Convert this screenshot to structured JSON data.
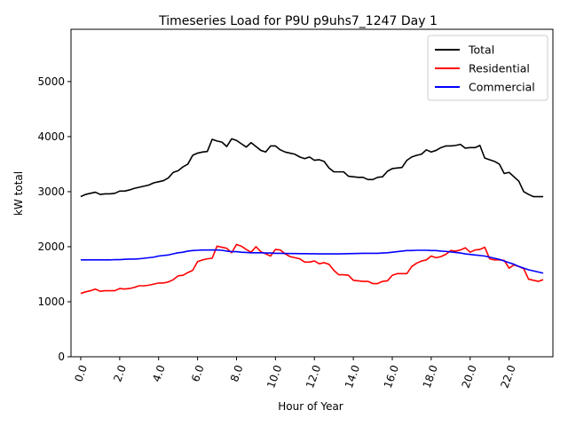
{
  "chart_data": {
    "type": "line",
    "title": "Timeseries Load for P9U p9uhs7_1247  Day 1",
    "xlabel": "Hour of Year",
    "ylabel": "kW total",
    "xlim": [
      -0.5,
      24.25
    ],
    "ylim": [
      0,
      5950
    ],
    "x_ticks": [
      0,
      2,
      4,
      6,
      8,
      10,
      12,
      14,
      16,
      18,
      20,
      22
    ],
    "x_tick_labels": [
      "0.0",
      "2.0",
      "4.0",
      "6.0",
      "8.0",
      "10.0",
      "12.0",
      "14.0",
      "16.0",
      "18.0",
      "20.0",
      "22.0"
    ],
    "y_ticks": [
      0,
      1000,
      2000,
      3000,
      4000,
      5000
    ],
    "y_tick_labels": [
      "0",
      "1000",
      "2000",
      "3000",
      "4000",
      "5000"
    ],
    "legend_position": "top-right",
    "x": [
      0.0,
      0.25,
      0.5,
      0.75,
      1.0,
      1.25,
      1.5,
      1.75,
      2.0,
      2.25,
      2.5,
      2.75,
      3.0,
      3.25,
      3.5,
      3.75,
      4.0,
      4.25,
      4.5,
      4.75,
      5.0,
      5.25,
      5.5,
      5.75,
      6.0,
      6.25,
      6.5,
      6.75,
      7.0,
      7.25,
      7.5,
      7.75,
      8.0,
      8.25,
      8.5,
      8.75,
      9.0,
      9.25,
      9.5,
      9.75,
      10.0,
      10.25,
      10.5,
      10.75,
      11.0,
      11.25,
      11.5,
      11.75,
      12.0,
      12.25,
      12.5,
      12.75,
      13.0,
      13.25,
      13.5,
      13.75,
      14.0,
      14.25,
      14.5,
      14.75,
      15.0,
      15.25,
      15.5,
      15.75,
      16.0,
      16.25,
      16.5,
      16.75,
      17.0,
      17.25,
      17.5,
      17.75,
      18.0,
      18.25,
      18.5,
      18.75,
      19.0,
      19.25,
      19.5,
      19.75,
      20.0,
      20.25,
      20.5,
      20.75,
      21.0,
      21.25,
      21.5,
      21.75,
      22.0,
      22.25,
      22.5,
      22.75,
      23.0,
      23.25,
      23.5,
      23.75
    ],
    "series": [
      {
        "name": "Total",
        "color": "#000000",
        "values": [
          2910,
          2950,
          2970,
          2990,
          2950,
          2960,
          2960,
          2970,
          3010,
          3010,
          3030,
          3060,
          3080,
          3100,
          3120,
          3160,
          3180,
          3200,
          3250,
          3350,
          3380,
          3450,
          3500,
          3660,
          3700,
          3720,
          3730,
          3950,
          3920,
          3900,
          3820,
          3960,
          3930,
          3870,
          3810,
          3890,
          3820,
          3750,
          3720,
          3830,
          3830,
          3760,
          3720,
          3700,
          3680,
          3630,
          3600,
          3630,
          3570,
          3580,
          3550,
          3430,
          3360,
          3360,
          3360,
          3280,
          3270,
          3260,
          3260,
          3220,
          3220,
          3260,
          3270,
          3370,
          3420,
          3430,
          3440,
          3570,
          3630,
          3660,
          3680,
          3760,
          3720,
          3750,
          3800,
          3830,
          3830,
          3840,
          3860,
          3790,
          3800,
          3800,
          3840,
          3610,
          3580,
          3550,
          3500,
          3330,
          3350,
          3270,
          3190,
          3000,
          2950,
          2910,
          2910,
          2910
        ]
      },
      {
        "name": "Residential",
        "color": "#ff0000",
        "values": [
          1150,
          1180,
          1200,
          1230,
          1190,
          1200,
          1200,
          1200,
          1240,
          1230,
          1240,
          1260,
          1290,
          1290,
          1300,
          1320,
          1340,
          1340,
          1360,
          1400,
          1470,
          1480,
          1530,
          1570,
          1730,
          1760,
          1780,
          1790,
          2010,
          1990,
          1970,
          1890,
          2040,
          2010,
          1950,
          1900,
          2000,
          1910,
          1870,
          1830,
          1950,
          1940,
          1870,
          1820,
          1800,
          1780,
          1720,
          1720,
          1740,
          1690,
          1710,
          1680,
          1570,
          1490,
          1490,
          1480,
          1390,
          1380,
          1370,
          1370,
          1330,
          1330,
          1370,
          1380,
          1480,
          1510,
          1510,
          1510,
          1640,
          1700,
          1740,
          1760,
          1830,
          1800,
          1820,
          1860,
          1930,
          1920,
          1940,
          1980,
          1900,
          1940,
          1950,
          1990,
          1780,
          1760,
          1760,
          1750,
          1610,
          1670,
          1640,
          1600,
          1410,
          1390,
          1370,
          1400
        ]
      },
      {
        "name": "Commercial",
        "color": "#0000ff",
        "values": [
          1760,
          1760,
          1760,
          1760,
          1760,
          1760,
          1760,
          1765,
          1765,
          1770,
          1775,
          1775,
          1780,
          1790,
          1800,
          1810,
          1830,
          1840,
          1850,
          1870,
          1890,
          1900,
          1920,
          1930,
          1935,
          1940,
          1940,
          1940,
          1940,
          1935,
          1920,
          1910,
          1910,
          1900,
          1895,
          1890,
          1890,
          1890,
          1885,
          1885,
          1880,
          1880,
          1878,
          1876,
          1875,
          1874,
          1873,
          1872,
          1871,
          1870,
          1870,
          1870,
          1870,
          1870,
          1872,
          1874,
          1876,
          1878,
          1880,
          1880,
          1880,
          1880,
          1885,
          1890,
          1900,
          1910,
          1920,
          1930,
          1930,
          1935,
          1935,
          1935,
          1930,
          1930,
          1920,
          1915,
          1905,
          1895,
          1885,
          1870,
          1860,
          1850,
          1840,
          1830,
          1810,
          1790,
          1770,
          1740,
          1710,
          1680,
          1640,
          1610,
          1580,
          1560,
          1540,
          1520
        ]
      }
    ]
  }
}
